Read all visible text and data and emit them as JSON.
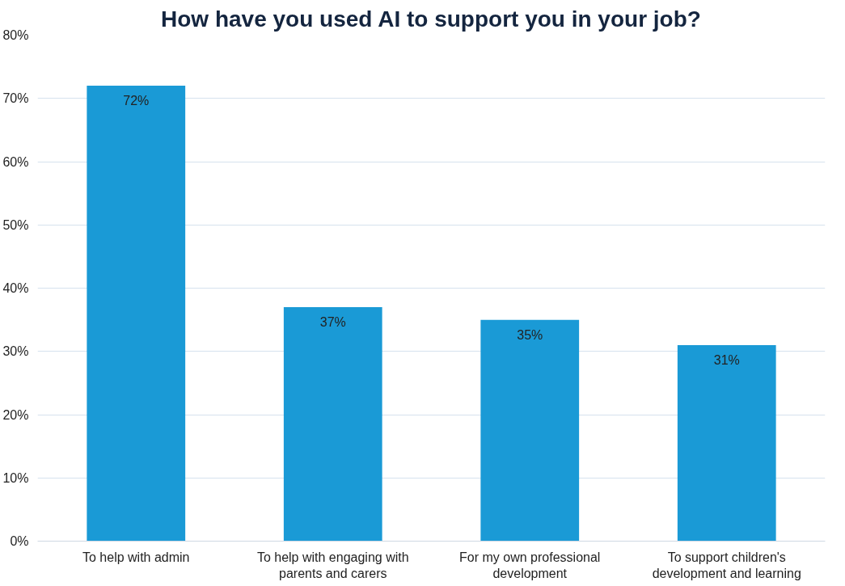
{
  "chart_data": {
    "type": "bar",
    "title": "How have you used AI to support you in your job?",
    "categories": [
      "To help with admin",
      "To help with engaging with parents and carers",
      "For my own professional development",
      "To support children's development and learning"
    ],
    "values": [
      72,
      37,
      35,
      31
    ],
    "value_labels": [
      "72%",
      "37%",
      "35%",
      "31%"
    ],
    "color": "#1a9ad6",
    "ylim": [
      0,
      80
    ],
    "yticks": [
      {
        "value": 0,
        "label": "0%"
      },
      {
        "value": 10,
        "label": "10%"
      },
      {
        "value": 20,
        "label": "20%"
      },
      {
        "value": 30,
        "label": "30%"
      },
      {
        "value": 40,
        "label": "40%"
      },
      {
        "value": 50,
        "label": "50%"
      },
      {
        "value": 60,
        "label": "60%"
      },
      {
        "value": 70,
        "label": "70%"
      },
      {
        "value": 80,
        "label": "80%"
      }
    ],
    "grid": "y"
  }
}
